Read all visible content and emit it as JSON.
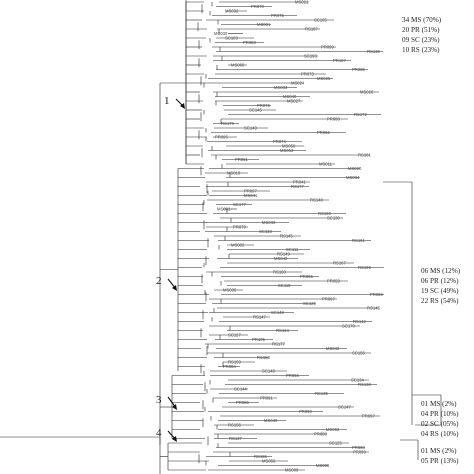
{
  "figure": {
    "clusters": [
      {
        "number": "1",
        "counts": [
          "34 MS (70%)",
          "20 PR (51%)",
          "09 SC (23%)",
          "10 RS (23%)"
        ]
      },
      {
        "number": "2",
        "counts": [
          "06 MS (12%)",
          "06 PR (12%)",
          "19 SC (49%)",
          "22 RS (54%)"
        ]
      },
      {
        "number": "3",
        "counts": [
          "01 MS (2%)",
          "04 PR (10%)",
          "02 SC (05%)",
          "04 RS (10%)"
        ]
      },
      {
        "number": "4",
        "counts": [
          "01 MS (2%)",
          "05 PR (13%)"
        ]
      }
    ],
    "leaf_labels": [
      "MS021",
      "PR070",
      "MS032",
      "PR075",
      "SC105",
      "MS001",
      "RS187",
      "MS030",
      "SC103",
      "PR083",
      "PR099",
      "RS136",
      "SC193",
      "PR107",
      "MS060",
      "PR085",
      "PR073",
      "MS025",
      "MS024",
      "MS033",
      "MS026",
      "MS040",
      "MS027",
      "PR076",
      "SC145",
      "RS172",
      "PR080",
      "RS179",
      "SC143",
      "PR066",
      "PR095",
      "PR074",
      "MS050",
      "MS053",
      "RS181",
      "PR081",
      "MS011",
      "MS020",
      "MS019",
      "MS034",
      "PR041",
      "RS177",
      "PR097",
      "MS041",
      "RS148",
      "SC177",
      "MS001",
      "RS160",
      "SC130",
      "MS040",
      "PR079",
      "SC133",
      "RS145",
      "RS161",
      "MS002",
      "SC111",
      "RS149",
      "MS042",
      "RS167",
      "RS196",
      "RS160",
      "PR065",
      "PR059",
      "SC119",
      "MS035",
      "PR089",
      "PR087",
      "SC129",
      "RS145",
      "SC148",
      "RS147",
      "RS142",
      "SC170",
      "RS164",
      "SC127",
      "PR105",
      "RS177",
      "MS043",
      "SC156",
      "RS150",
      "RS159",
      "PR084",
      "SC148",
      "PR066",
      "SC134",
      "RS138",
      "SC144",
      "RS135",
      "PR091",
      "PR086",
      "SC147",
      "PR090",
      "PR097",
      "MS049",
      "RS156",
      "MS062",
      "PR088",
      "RS137",
      "SC125",
      "PR093",
      "PR099",
      "RS155",
      "MS050",
      "MS008",
      "MS009"
    ]
  }
}
